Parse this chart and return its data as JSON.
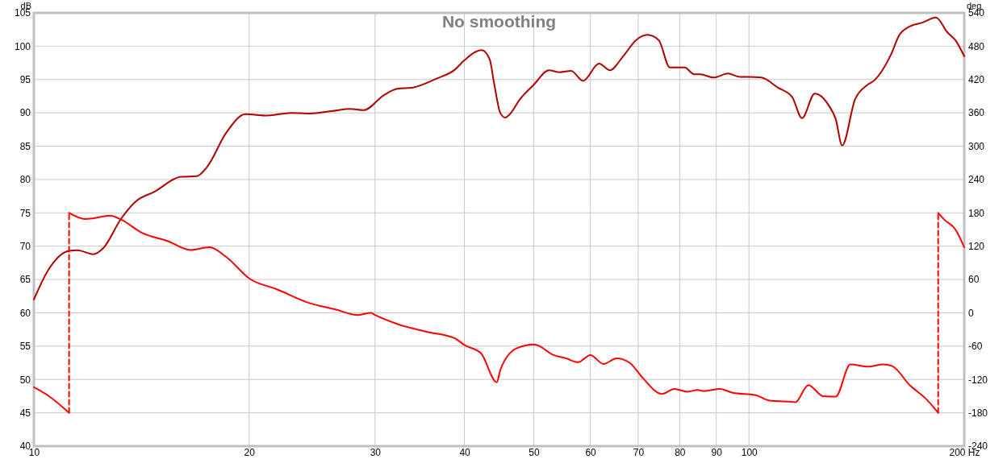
{
  "chart_data": {
    "type": "line",
    "title": "No smoothing",
    "ylabel": "dB",
    "y2label": "deg",
    "log": "x",
    "grid": true,
    "xlim": [
      10,
      200
    ],
    "xticks": [
      10,
      20,
      30,
      40,
      50,
      60,
      70,
      80,
      90,
      100,
      {
        "value": 200,
        "label": "200 Hz"
      }
    ],
    "ylim": [
      40,
      105
    ],
    "yticks": [
      40,
      45,
      50,
      55,
      60,
      65,
      70,
      75,
      80,
      85,
      90,
      95,
      100,
      105
    ],
    "y2lim": [
      -240,
      540
    ],
    "y2ticks": [
      -240,
      -180,
      -120,
      -60,
      0,
      60,
      120,
      180,
      240,
      300,
      360,
      420,
      480,
      540
    ],
    "series": [
      {
        "color": "#b00000",
        "x": [
          10,
          10.47,
          11.2,
          11.5,
          12.1,
          12.5,
          13.24,
          13.88,
          14.76,
          16.05,
          16.9,
          17.44,
          18.6,
          19.76,
          21.2,
          22.9,
          24.3,
          26.2,
          27.7,
          28.9,
          30.9,
          32.2,
          33.9,
          36.5,
          38.8,
          40,
          42.3,
          43.4,
          44,
          44.9,
          45.6,
          46.3,
          47.8,
          50.1,
          52.5,
          54.4,
          56.4,
          58.6,
          61.7,
          63.9,
          66.7,
          69.5,
          72.1,
          74.8,
          77.5,
          81.3,
          83.8,
          85.5,
          89.2,
          93.5,
          97,
          100,
          104.1,
          109.7,
          114.9,
          118.6,
          123.6,
          129.5,
          132.2,
          135,
          140.7,
          146,
          149.8,
          157.9,
          162.1,
          168,
          174.3,
          182.6,
          189.4,
          194.4,
          200
        ],
        "values": [
          62,
          66.4,
          69.3,
          69.4,
          68.8,
          69.7,
          74.1,
          76.7,
          78.2,
          80.4,
          80.5,
          81.8,
          87.1,
          89.8,
          89.6,
          90,
          89.9,
          90.3,
          90.6,
          90.4,
          92.7,
          93.6,
          93.8,
          95.1,
          96.5,
          97.9,
          99.4,
          98,
          94.5,
          90,
          89.3,
          89.8,
          92,
          94.3,
          96.4,
          96.1,
          96.3,
          94.8,
          97.4,
          96.4,
          98.5,
          100.9,
          101.7,
          100.9,
          96.8,
          96.8,
          95.8,
          95.8,
          95.3,
          95.9,
          95.4,
          95.4,
          95.3,
          93.8,
          92.4,
          89.2,
          92.9,
          91,
          89.1,
          85.1,
          92,
          94.1,
          94.9,
          98.7,
          101.6,
          103,
          103.5,
          104.3,
          102.1,
          100.9,
          98.5
        ]
      },
      {
        "color": "#ff0000",
        "axis": "y2",
        "x": [
          10,
          10.47,
          11.2
        ],
        "values": [
          -134,
          -149,
          -180
        ]
      },
      {
        "color": "#ff0000",
        "axis": "y2",
        "line_style": "dashed",
        "x": [
          11.2,
          11.2
        ],
        "values": [
          -180,
          180
        ]
      },
      {
        "color": "#ff0000",
        "axis": "y2",
        "x": [
          11.2,
          11.8,
          12.1,
          12.77,
          13.24,
          14.16,
          15.4,
          16.55,
          17.6,
          18.6,
          20,
          21.9,
          24.1,
          26.4,
          28.4,
          29.6,
          30,
          32.2,
          35.4,
          38.8,
          40,
          42.2,
          44.4,
          44.9,
          47.3,
          50.1,
          53.3,
          55.5,
          57.7,
          60,
          62.6,
          65.3,
          68.1,
          71,
          75.5,
          78.7,
          82,
          84.7,
          86.5,
          91.1,
          94.9,
          102,
          106.9,
          114.3,
          116.1,
          121.1,
          126.9,
          132.2,
          138.6,
          146.8,
          154,
          158.6,
          168,
          176.9,
          183.9
        ],
        "values": [
          180,
          169,
          170,
          175,
          168,
          144,
          129,
          113,
          118,
          100,
          62,
          42,
          19,
          6,
          -4,
          0,
          -4,
          -20,
          -34,
          -46,
          -58,
          -73,
          -125,
          -103,
          -64,
          -57,
          -76,
          -82,
          -89,
          -76,
          -92,
          -82,
          -90,
          -117,
          -146,
          -137,
          -142,
          -139,
          -141,
          -137,
          -144,
          -148,
          -158,
          -160,
          -161,
          -130,
          -150,
          -151,
          -93,
          -97,
          -93,
          -96,
          -131,
          -155,
          -180
        ]
      },
      {
        "color": "#ff0000",
        "axis": "y2",
        "line_style": "dashed",
        "x": [
          183.9,
          183.9
        ],
        "values": [
          -180,
          180
        ]
      },
      {
        "color": "#ff0000",
        "axis": "y2",
        "x": [
          183.9,
          187.5,
          194.4,
          200
        ],
        "values": [
          180,
          168,
          150,
          118
        ]
      }
    ]
  }
}
